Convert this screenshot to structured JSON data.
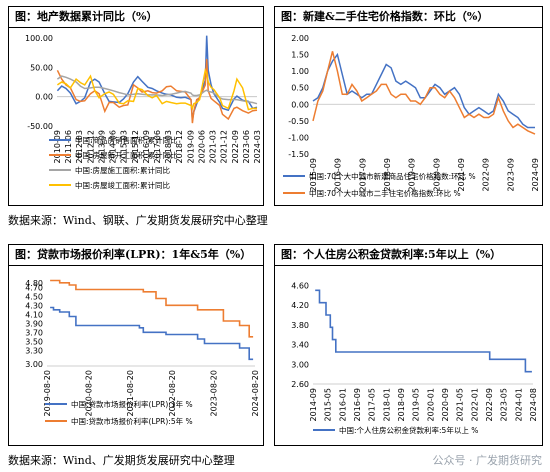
{
  "panels": [
    {
      "title": "图：地产数据累计同比（%）"
    },
    {
      "title": "图：新建&二手住宅价格指数：环比（%）"
    },
    {
      "title": "图：贷款市场报价利率(LPR)：1年&5年（%）"
    },
    {
      "title": "图：个人住房公积金贷款利率:5年以上（%）"
    }
  ],
  "source1": "数据来源：Wind、钢联、广发期货发展研究中心整理",
  "source2": "数据来源：Wind、广发期货发展研究中心整理",
  "watermark": "公众号 · 广发期货研究",
  "chart_data": [
    {
      "type": "line",
      "title": "图：地产数据累计同比（%）",
      "x_tick_labels": [
        "2010-09",
        "2011-06",
        "2012-03",
        "2012-12",
        "2013-09",
        "2014-06",
        "2015-03",
        "2015-12",
        "2016-09",
        "2017-06",
        "2018-03",
        "2018-12",
        "2019-09",
        "2020-06",
        "2021-03",
        "2021-12",
        "2022-09",
        "2023-06",
        "2024-03"
      ],
      "y_ticks": [
        "-50.00",
        "0.00",
        "50.00",
        "100.00"
      ],
      "ylim": [
        -50,
        100
      ],
      "x_range": [
        2010.67,
        2024.6
      ],
      "series": [
        {
          "name": "中国:商品房销售面积:累计同比",
          "color": "#4472c4",
          "x": [
            2010.7,
            2011.0,
            2011.3,
            2011.6,
            2012.0,
            2012.3,
            2012.6,
            2013.0,
            2013.3,
            2013.6,
            2014.0,
            2014.3,
            2014.6,
            2015.0,
            2015.3,
            2015.6,
            2016.0,
            2016.3,
            2016.6,
            2017.0,
            2017.3,
            2017.6,
            2018.0,
            2018.3,
            2018.6,
            2019.0,
            2019.3,
            2019.6,
            2020.0,
            2020.1,
            2020.2,
            2020.4,
            2020.6,
            2021.0,
            2021.1,
            2021.2,
            2021.4,
            2021.6,
            2022.0,
            2022.2,
            2022.6,
            2023.0,
            2023.2,
            2023.6,
            2024.0,
            2024.3,
            2024.6
          ],
          "y": [
            10,
            18,
            14,
            6,
            -12,
            -8,
            -2,
            25,
            30,
            25,
            5,
            -8,
            -9,
            -10,
            -4,
            5,
            25,
            34,
            26,
            16,
            14,
            10,
            6,
            4,
            3,
            -1,
            -2,
            -1,
            -5,
            -40,
            -26,
            -12,
            -1,
            28,
            104,
            45,
            20,
            5,
            -10,
            -20,
            -23,
            -4,
            1,
            -6,
            -8,
            -20,
            -18
          ]
        },
        {
          "name": "中国:房屋新开工面积:累计同比",
          "color": "#ed7d31",
          "x": [
            2010.7,
            2011.0,
            2011.3,
            2011.6,
            2012.0,
            2012.3,
            2012.6,
            2013.0,
            2013.3,
            2013.6,
            2014.0,
            2014.3,
            2014.6,
            2015.0,
            2015.3,
            2015.6,
            2016.0,
            2016.3,
            2016.6,
            2017.0,
            2017.3,
            2017.6,
            2018.0,
            2018.3,
            2018.6,
            2019.0,
            2019.3,
            2019.6,
            2020.0,
            2020.1,
            2020.2,
            2020.4,
            2020.6,
            2021.0,
            2021.1,
            2021.2,
            2021.4,
            2021.6,
            2022.0,
            2022.2,
            2022.6,
            2023.0,
            2023.2,
            2023.6,
            2024.0,
            2024.3,
            2024.6
          ],
          "y": [
            45,
            30,
            20,
            15,
            -5,
            -8,
            -7,
            5,
            10,
            5,
            -25,
            -10,
            -10,
            -18,
            -15,
            -14,
            20,
            15,
            8,
            10,
            7,
            6,
            10,
            17,
            18,
            10,
            9,
            8,
            -5,
            -45,
            -25,
            -5,
            -2,
            20,
            64,
            10,
            -3,
            -7,
            -15,
            -30,
            -38,
            -20,
            -18,
            -24,
            -28,
            -24,
            -23
          ]
        },
        {
          "name": "中国:房屋施工面积:累计同比",
          "color": "#a5a5a5",
          "x": [
            2010.7,
            2011.0,
            2011.3,
            2011.6,
            2012.0,
            2012.3,
            2012.6,
            2013.0,
            2013.3,
            2013.6,
            2014.0,
            2014.3,
            2014.6,
            2015.0,
            2015.3,
            2015.6,
            2016.0,
            2016.3,
            2016.6,
            2017.0,
            2017.3,
            2017.6,
            2018.0,
            2018.3,
            2018.6,
            2019.0,
            2019.3,
            2019.6,
            2020.0,
            2020.1,
            2020.2,
            2020.4,
            2020.6,
            2021.0,
            2021.1,
            2021.2,
            2021.4,
            2021.6,
            2022.0,
            2022.2,
            2022.6,
            2023.0,
            2023.2,
            2023.6,
            2024.0,
            2024.3,
            2024.6
          ],
          "y": [
            30,
            35,
            33,
            30,
            25,
            18,
            14,
            15,
            16,
            16,
            14,
            12,
            10,
            7,
            5,
            3,
            4,
            5,
            4,
            3,
            3,
            3,
            2,
            3,
            4,
            6,
            8,
            9,
            6,
            3,
            2,
            2,
            3,
            10,
            11,
            9,
            8,
            6,
            -2,
            -4,
            -5,
            -5,
            -5,
            -7,
            -9,
            -10,
            -12
          ]
        },
        {
          "name": "中国:房屋竣工面积:累计同比",
          "color": "#ffc000",
          "x": [
            2010.7,
            2011.0,
            2011.3,
            2011.6,
            2012.0,
            2012.3,
            2012.6,
            2013.0,
            2013.3,
            2013.6,
            2014.0,
            2014.3,
            2014.6,
            2015.0,
            2015.3,
            2015.6,
            2016.0,
            2016.3,
            2016.6,
            2017.0,
            2017.3,
            2017.6,
            2018.0,
            2018.3,
            2018.6,
            2019.0,
            2019.3,
            2019.6,
            2020.0,
            2020.1,
            2020.2,
            2020.4,
            2020.6,
            2021.0,
            2021.1,
            2021.2,
            2021.4,
            2021.6,
            2022.0,
            2022.2,
            2022.6,
            2023.0,
            2023.2,
            2023.6,
            2024.0,
            2024.3,
            2024.6
          ],
          "y": [
            20,
            25,
            22,
            15,
            30,
            24,
            20,
            35,
            10,
            -2,
            5,
            8,
            4,
            -11,
            -12,
            -7,
            -8,
            14,
            12,
            2,
            -2,
            2,
            -12,
            -8,
            -10,
            -12,
            -11,
            -11,
            -15,
            -20,
            -12,
            -10,
            -5,
            45,
            40,
            25,
            16,
            12,
            -2,
            -15,
            -20,
            10,
            30,
            15,
            -22,
            -20,
            -20
          ]
        }
      ]
    },
    {
      "type": "line",
      "title": "图：新建&二手住宅价格指数：环比（%）",
      "x_tick_labels": [
        "2015-09",
        "2016-09",
        "2017-09",
        "2018-09",
        "2019-09",
        "2020-09",
        "2021-09",
        "2022-09",
        "2023-09",
        "2024-09"
      ],
      "y_ticks": [
        "-1.50",
        "-1.00",
        "-0.50",
        "0.00",
        "0.50",
        "1.00",
        "1.50",
        "2.00"
      ],
      "ylim": [
        -1.5,
        2.0
      ],
      "x_range": [
        2015.7,
        2024.8
      ],
      "series": [
        {
          "name": "中国:70个大中城市新建商品住宅价格指数:环比 %",
          "color": "#4472c4",
          "x": [
            2015.7,
            2015.9,
            2016.1,
            2016.3,
            2016.5,
            2016.7,
            2016.9,
            2017.1,
            2017.3,
            2017.5,
            2017.7,
            2017.9,
            2018.1,
            2018.3,
            2018.5,
            2018.7,
            2018.9,
            2019.1,
            2019.3,
            2019.5,
            2019.7,
            2019.9,
            2020.1,
            2020.3,
            2020.5,
            2020.7,
            2020.9,
            2021.1,
            2021.3,
            2021.5,
            2021.7,
            2021.9,
            2022.1,
            2022.3,
            2022.5,
            2022.7,
            2022.9,
            2023.1,
            2023.3,
            2023.5,
            2023.7,
            2023.9,
            2024.1,
            2024.3,
            2024.5,
            2024.8
          ],
          "y": [
            0.1,
            0.2,
            0.5,
            1.0,
            1.3,
            1.5,
            0.9,
            0.3,
            0.4,
            0.3,
            0.2,
            0.3,
            0.3,
            0.6,
            0.9,
            1.2,
            1.1,
            0.7,
            0.6,
            0.7,
            0.6,
            0.5,
            0.2,
            0.2,
            0.4,
            0.6,
            0.5,
            0.3,
            0.4,
            0.5,
            0.3,
            -0.1,
            -0.3,
            -0.2,
            -0.1,
            -0.2,
            -0.3,
            -0.2,
            0.3,
            0.1,
            -0.2,
            -0.3,
            -0.4,
            -0.6,
            -0.7,
            -0.7
          ]
        },
        {
          "name": "中国:70个大中城市二手住宅价格指数:环比 %",
          "color": "#ed7d31",
          "x": [
            2015.7,
            2015.9,
            2016.1,
            2016.3,
            2016.5,
            2016.7,
            2016.9,
            2017.1,
            2017.3,
            2017.5,
            2017.7,
            2017.9,
            2018.1,
            2018.3,
            2018.5,
            2018.7,
            2018.9,
            2019.1,
            2019.3,
            2019.5,
            2019.7,
            2019.9,
            2020.1,
            2020.3,
            2020.5,
            2020.7,
            2020.9,
            2021.1,
            2021.3,
            2021.5,
            2021.7,
            2021.9,
            2022.1,
            2022.3,
            2022.5,
            2022.7,
            2022.9,
            2023.1,
            2023.3,
            2023.5,
            2023.7,
            2023.9,
            2024.1,
            2024.3,
            2024.5,
            2024.8
          ],
          "y": [
            -0.5,
            0.1,
            0.4,
            1.0,
            1.6,
            1.0,
            0.3,
            0.3,
            0.6,
            0.4,
            0.1,
            0.2,
            0.3,
            0.4,
            0.6,
            0.6,
            0.3,
            0.2,
            0.3,
            0.3,
            0.1,
            0.1,
            0.0,
            0.2,
            0.5,
            0.5,
            0.3,
            0.2,
            0.4,
            0.2,
            -0.1,
            -0.4,
            -0.3,
            -0.4,
            -0.3,
            -0.4,
            -0.4,
            -0.3,
            0.2,
            -0.2,
            -0.5,
            -0.7,
            -0.6,
            -0.7,
            -0.8,
            -0.9
          ]
        }
      ]
    },
    {
      "type": "line",
      "title": "图：贷款市场报价利率(LPR)：1年&5年（%）",
      "x_tick_labels": [
        "2019-08-20",
        "2020-08-20",
        "2021-08-20",
        "2022-08-20",
        "2023-08-20",
        "2024-08-20"
      ],
      "y_ticks": [
        "3.00",
        "3.30",
        "3.50",
        "3.70",
        "3.90",
        "4.10",
        "4.30",
        "4.50",
        "4.70",
        "4.80"
      ],
      "ylim": [
        2.95,
        4.95
      ],
      "x_range": [
        2019.55,
        2024.95
      ],
      "series": [
        {
          "name": "中国:贷款市场报价利率(LPR):1年 %",
          "color": "#4472c4",
          "x": [
            2019.63,
            2019.72,
            2019.8,
            2019.88,
            2020.13,
            2020.3,
            2021.95,
            2022.05,
            2022.64,
            2023.46,
            2023.64,
            2024.55,
            2024.8,
            2024.9
          ],
          "y": [
            4.25,
            4.2,
            4.2,
            4.15,
            4.05,
            3.85,
            3.8,
            3.7,
            3.65,
            3.55,
            3.45,
            3.35,
            3.1,
            3.1
          ]
        },
        {
          "name": "中国:贷款市场报价利率(LPR):5年 %",
          "color": "#ed7d31",
          "x": [
            2019.63,
            2019.88,
            2020.13,
            2020.3,
            2022.05,
            2022.38,
            2022.64,
            2023.46,
            2024.13,
            2024.55,
            2024.8,
            2024.9
          ],
          "y": [
            4.85,
            4.8,
            4.75,
            4.65,
            4.6,
            4.45,
            4.3,
            4.2,
            3.95,
            3.85,
            3.6,
            3.6
          ]
        }
      ]
    },
    {
      "type": "line",
      "title": "图：个人住房公积金贷款利率:5年以上（%）",
      "x_tick_labels": [
        "2014-09",
        "2015-05",
        "2016-01",
        "2016-09",
        "2017-05",
        "2018-01",
        "2018-09",
        "2019-05",
        "2020-01",
        "2020-09",
        "2021-05",
        "2022-01",
        "2022-09",
        "2023-05",
        "2024-01",
        "2024-08"
      ],
      "y_ticks": [
        "2.60",
        "3.00",
        "3.40",
        "3.80",
        "4.20",
        "4.60"
      ],
      "ylim": [
        2.6,
        4.75
      ],
      "x_range": [
        2014.6,
        2024.75
      ],
      "series": [
        {
          "name": "中国:个人住房公积金贷款利率:5年以上 %",
          "color": "#4472c4",
          "x": [
            2014.7,
            2014.9,
            2015.2,
            2015.4,
            2015.5,
            2015.65,
            2015.8,
            2022.75,
            2024.4,
            2024.7
          ],
          "y": [
            4.5,
            4.25,
            4.0,
            3.75,
            3.5,
            3.25,
            3.25,
            3.1,
            2.85,
            2.85
          ]
        }
      ]
    }
  ]
}
